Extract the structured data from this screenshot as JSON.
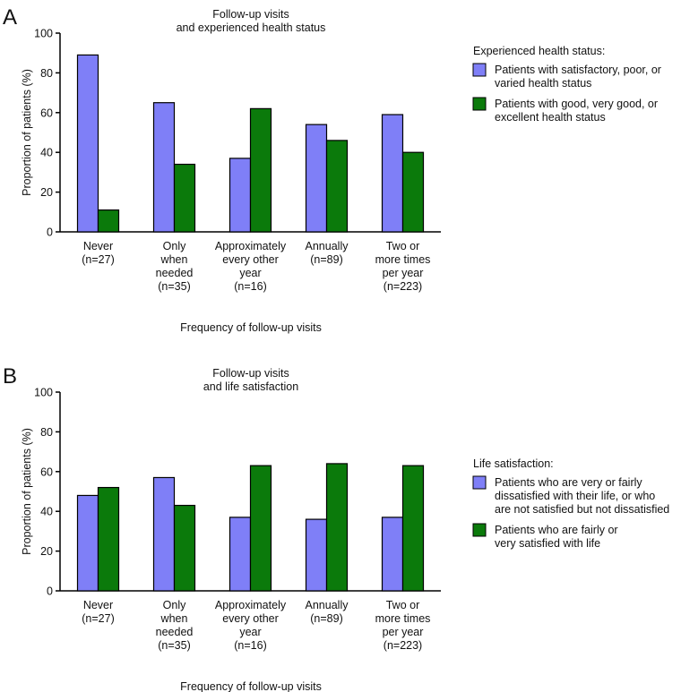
{
  "chart_data": [
    {
      "type": "bar",
      "panel": "A",
      "title": "Follow-up visits\nand experienced health status",
      "xlabel": "Frequency of follow-up visits",
      "ylabel": "Proportion of patients (%)",
      "legend_title": "Experienced health status:",
      "categories": [
        "Never\n(n=27)",
        "Only\nwhen\nneeded\n(n=35)",
        "Approximately\nevery other\nyear\n(n=16)",
        "Annually\n(n=89)",
        "Two or\nmore times\nper year\n(n=223)"
      ],
      "series": [
        {
          "name": "Patients with satisfactory, poor, or\nvaried health status",
          "color": "#7f7ff7",
          "values": [
            89,
            65,
            37,
            54,
            59
          ]
        },
        {
          "name": "Patients with good, very good, or\nexcellent health status",
          "color": "#0b7a0b",
          "values": [
            11,
            34,
            62,
            46,
            40
          ]
        }
      ],
      "ylim": [
        0,
        100
      ],
      "yticks": [
        0,
        20,
        40,
        60,
        80,
        100
      ]
    },
    {
      "type": "bar",
      "panel": "B",
      "title": "Follow-up visits\nand life satisfaction",
      "xlabel": "Frequency of follow-up visits",
      "ylabel": "Proportion of patients (%)",
      "legend_title": "Life satisfaction:",
      "categories": [
        "Never\n(n=27)",
        "Only\nwhen\nneeded\n(n=35)",
        "Approximately\nevery other\nyear\n(n=16)",
        "Annually\n(n=89)",
        "Two or\nmore times\nper year\n(n=223)"
      ],
      "series": [
        {
          "name": "Patients who are very or fairly\ndissatisfied with their life, or who\nare not satisfied but not dissatisfied",
          "color": "#7f7ff7",
          "values": [
            48,
            57,
            37,
            36,
            37
          ]
        },
        {
          "name": "Patients who are fairly or\nvery satisfied with life",
          "color": "#0b7a0b",
          "values": [
            52,
            43,
            63,
            64,
            63
          ]
        }
      ],
      "ylim": [
        0,
        100
      ],
      "yticks": [
        0,
        20,
        40,
        60,
        80,
        100
      ]
    }
  ]
}
